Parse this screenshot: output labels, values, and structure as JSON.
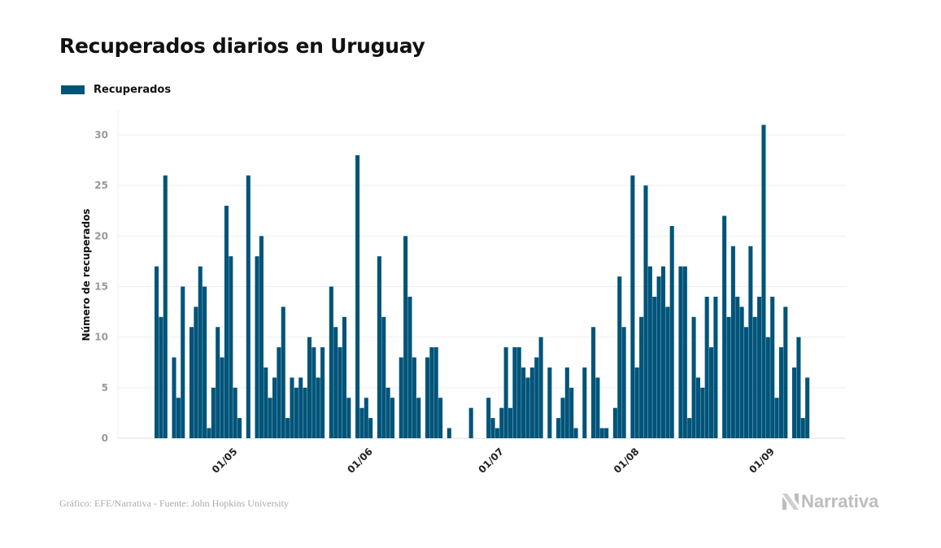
{
  "chart_data": {
    "type": "bar",
    "title": "Recuperados diarios en Uruguay",
    "ylabel": "Número de recuperados",
    "xlabel": "",
    "ylim": [
      0,
      30
    ],
    "yticks": [
      0,
      5,
      10,
      15,
      20,
      25,
      30
    ],
    "xtick_labels": [
      "01/05",
      "01/06",
      "01/07",
      "01/08",
      "01/09"
    ],
    "grid": true,
    "legend_placement": "top-left",
    "bar_color": "#005479",
    "categories": [
      "13/04",
      "14/04",
      "15/04",
      "16/04",
      "17/04",
      "18/04",
      "19/04",
      "20/04",
      "21/04",
      "22/04",
      "23/04",
      "24/04",
      "25/04",
      "26/04",
      "27/04",
      "28/04",
      "29/04",
      "30/04",
      "01/05",
      "02/05",
      "03/05",
      "04/05",
      "05/05",
      "06/05",
      "07/05",
      "08/05",
      "09/05",
      "10/05",
      "11/05",
      "12/05",
      "13/05",
      "14/05",
      "15/05",
      "16/05",
      "17/05",
      "18/05",
      "19/05",
      "20/05",
      "21/05",
      "22/05",
      "23/05",
      "24/05",
      "25/05",
      "26/05",
      "27/05",
      "28/05",
      "29/05",
      "30/05",
      "31/05",
      "01/06",
      "02/06",
      "03/06",
      "04/06",
      "05/06",
      "06/06",
      "07/06",
      "08/06",
      "09/06",
      "10/06",
      "11/06",
      "12/06",
      "13/06",
      "14/06",
      "15/06",
      "16/06",
      "17/06",
      "18/06",
      "19/06",
      "20/06",
      "21/06",
      "22/06",
      "23/06",
      "24/06",
      "25/06",
      "26/06",
      "27/06",
      "28/06",
      "29/06",
      "30/06",
      "01/07",
      "02/07",
      "03/07",
      "04/07",
      "05/07",
      "06/07",
      "07/07",
      "08/07",
      "09/07",
      "10/07",
      "11/07",
      "12/07",
      "13/07",
      "14/07",
      "15/07",
      "16/07",
      "17/07",
      "18/07",
      "19/07",
      "20/07",
      "21/07",
      "22/07",
      "23/07",
      "24/07",
      "25/07",
      "26/07",
      "27/07",
      "28/07",
      "29/07",
      "30/07",
      "31/07",
      "01/08",
      "02/08",
      "03/08",
      "04/08",
      "05/08",
      "06/08",
      "07/08",
      "08/08",
      "09/08",
      "10/08",
      "11/08",
      "12/08",
      "13/08",
      "14/08",
      "15/08",
      "16/08",
      "17/08",
      "18/08",
      "19/08",
      "20/08",
      "21/08",
      "22/08",
      "23/08",
      "24/08",
      "25/08",
      "26/08",
      "27/08",
      "28/08",
      "29/08",
      "30/08",
      "31/08",
      "01/09",
      "02/09",
      "03/09",
      "04/09",
      "05/09",
      "06/09",
      "07/09",
      "08/09",
      "09/09"
    ],
    "series": [
      {
        "name": "Recuperados",
        "values": [
          17,
          12,
          26,
          0,
          8,
          4,
          15,
          0,
          11,
          13,
          17,
          15,
          1,
          5,
          11,
          8,
          23,
          18,
          5,
          2,
          0,
          26,
          0,
          18,
          20,
          7,
          4,
          6,
          9,
          13,
          2,
          6,
          5,
          6,
          5,
          10,
          9,
          6,
          9,
          0,
          15,
          11,
          9,
          12,
          4,
          0,
          28,
          3,
          4,
          2,
          0,
          18,
          12,
          5,
          4,
          0,
          8,
          20,
          14,
          8,
          4,
          0,
          8,
          9,
          9,
          4,
          0,
          1,
          0,
          0,
          0,
          0,
          3,
          0,
          0,
          0,
          4,
          2,
          1,
          3,
          9,
          3,
          9,
          9,
          7,
          6,
          7,
          8,
          10,
          0,
          7,
          0,
          2,
          4,
          7,
          5,
          1,
          0,
          7,
          0,
          11,
          6,
          1,
          1,
          0,
          3,
          16,
          11,
          0,
          26,
          7,
          12,
          25,
          17,
          14,
          16,
          17,
          13,
          21,
          0,
          17,
          17,
          2,
          12,
          6,
          5,
          14,
          9,
          14,
          0,
          22,
          12,
          19,
          14,
          13,
          11,
          19,
          12,
          14,
          31,
          10,
          14,
          4,
          9,
          13,
          0,
          7,
          10,
          2,
          6
        ]
      }
    ]
  },
  "footer": {
    "source": "Gráfico: EFE/Narrativa - Fuente: John Hopkins University",
    "logo_text": "Narrativa"
  }
}
